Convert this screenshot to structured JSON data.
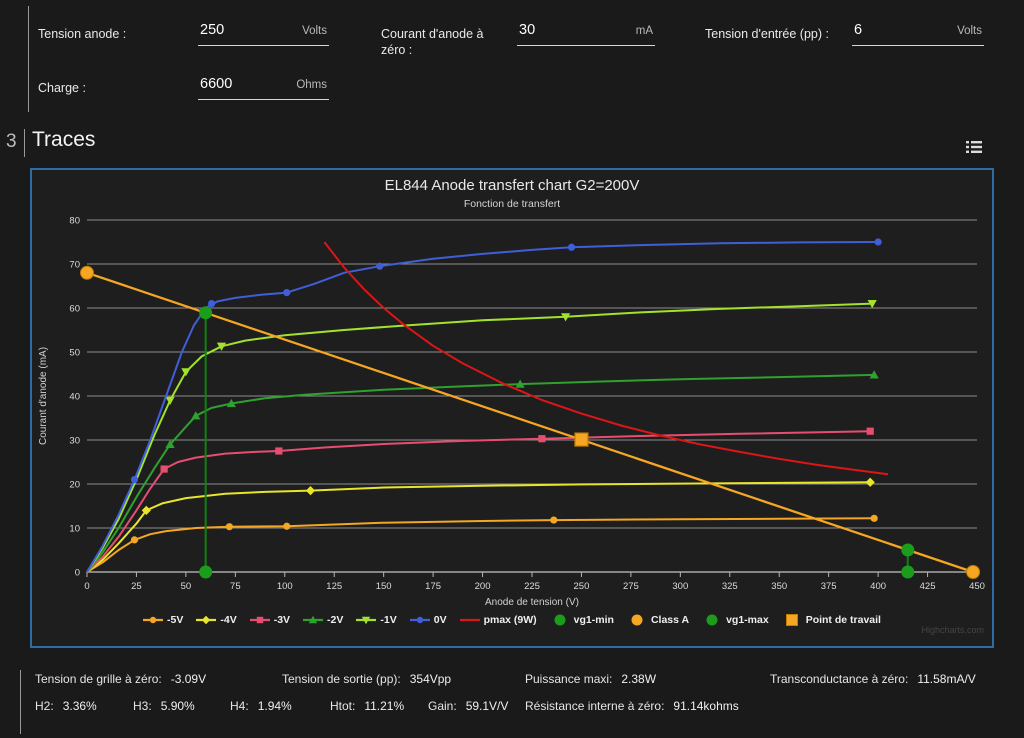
{
  "form": {
    "fields": [
      {
        "label": "Tension anode :",
        "value": "250",
        "unit": "Volts"
      },
      {
        "label": "Courant d'anode à zéro :",
        "value": "30",
        "unit": "mA"
      },
      {
        "label": "Tension d'entrée (pp) :",
        "value": "6",
        "unit": "Volts"
      },
      {
        "label": "Charge :",
        "value": "6600",
        "unit": "Ohms"
      }
    ]
  },
  "section": {
    "number": "3",
    "title": "Traces"
  },
  "chart_data": {
    "type": "line",
    "title": "EL844 Anode transfert chart G2=200V",
    "subtitle": "Fonction de transfert",
    "xlabel": "Anode de tension (V)",
    "ylabel": "Courant d'anode (mA)",
    "xlim": [
      0,
      450
    ],
    "ylim": [
      0,
      80
    ],
    "x_ticks": [
      0,
      25,
      50,
      75,
      100,
      125,
      150,
      175,
      200,
      225,
      250,
      275,
      300,
      325,
      350,
      375,
      400,
      425,
      450
    ],
    "y_ticks": [
      0,
      10,
      20,
      30,
      40,
      50,
      60,
      70,
      80
    ],
    "grid": "horizontal",
    "legend_position": "bottom",
    "watermark": "Highcharts.com",
    "accent_border_color": "#2e6da4",
    "series": [
      {
        "name": "-5V",
        "color": "#f5a623",
        "marker": "circle",
        "points": [
          [
            0,
            0
          ],
          [
            8,
            2.2
          ],
          [
            16,
            5
          ],
          [
            24,
            7.3
          ],
          [
            32,
            8.6
          ],
          [
            40,
            9.3
          ],
          [
            55,
            10
          ],
          [
            72,
            10.3
          ],
          [
            101,
            10.4
          ],
          [
            150,
            11.2
          ],
          [
            200,
            11.6
          ],
          [
            236,
            11.8
          ],
          [
            300,
            12
          ],
          [
            350,
            12.1
          ],
          [
            398,
            12.2
          ]
        ],
        "markers": [
          [
            24,
            7.3
          ],
          [
            72,
            10.3
          ],
          [
            101,
            10.4
          ],
          [
            236,
            11.8
          ],
          [
            398,
            12.2
          ]
        ]
      },
      {
        "name": "-4V",
        "color": "#e9e42c",
        "marker": "diamond",
        "points": [
          [
            0,
            0
          ],
          [
            8,
            2.8
          ],
          [
            16,
            6.5
          ],
          [
            25,
            11
          ],
          [
            30,
            14
          ],
          [
            38,
            15.6
          ],
          [
            50,
            16.8
          ],
          [
            70,
            17.8
          ],
          [
            90,
            18.2
          ],
          [
            113,
            18.5
          ],
          [
            150,
            19.2
          ],
          [
            200,
            19.6
          ],
          [
            250,
            19.9
          ],
          [
            300,
            20.1
          ],
          [
            396,
            20.4
          ]
        ],
        "markers": [
          [
            30,
            14
          ],
          [
            113,
            18.5
          ],
          [
            396,
            20.4
          ]
        ]
      },
      {
        "name": "-3V",
        "color": "#e64e70",
        "marker": "square",
        "points": [
          [
            0,
            0
          ],
          [
            8,
            3.5
          ],
          [
            16,
            8
          ],
          [
            25,
            14
          ],
          [
            32,
            19
          ],
          [
            39,
            23.4
          ],
          [
            46,
            25
          ],
          [
            55,
            26
          ],
          [
            70,
            26.9
          ],
          [
            85,
            27.3
          ],
          [
            97,
            27.5
          ],
          [
            120,
            28.3
          ],
          [
            150,
            29.1
          ],
          [
            190,
            29.8
          ],
          [
            230,
            30.3
          ],
          [
            280,
            30.9
          ],
          [
            330,
            31.4
          ],
          [
            396,
            32
          ]
        ],
        "markers": [
          [
            39,
            23.4
          ],
          [
            97,
            27.5
          ],
          [
            230,
            30.3
          ],
          [
            396,
            32
          ]
        ]
      },
      {
        "name": "-2V",
        "color": "#2fa12f",
        "marker": "triangle",
        "points": [
          [
            0,
            0
          ],
          [
            8,
            4.5
          ],
          [
            16,
            10
          ],
          [
            25,
            17
          ],
          [
            34,
            23.5
          ],
          [
            42,
            29
          ],
          [
            50,
            33
          ],
          [
            55,
            35.5
          ],
          [
            63,
            37.3
          ],
          [
            73,
            38.3
          ],
          [
            90,
            39.5
          ],
          [
            110,
            40.3
          ],
          [
            150,
            41.4
          ],
          [
            185,
            42.1
          ],
          [
            219,
            42.7
          ],
          [
            260,
            43.3
          ],
          [
            300,
            43.8
          ],
          [
            350,
            44.3
          ],
          [
            398,
            44.8
          ]
        ],
        "markers": [
          [
            42,
            29
          ],
          [
            55,
            35.5
          ],
          [
            73,
            38.3
          ],
          [
            219,
            42.7
          ],
          [
            398,
            44.8
          ]
        ]
      },
      {
        "name": "-1V",
        "color": "#a3e22c",
        "marker": "triangle-down",
        "points": [
          [
            0,
            0
          ],
          [
            8,
            5.5
          ],
          [
            16,
            12
          ],
          [
            25,
            21
          ],
          [
            34,
            31
          ],
          [
            42,
            39
          ],
          [
            50,
            45.5
          ],
          [
            58,
            49
          ],
          [
            68,
            51.3
          ],
          [
            80,
            52.6
          ],
          [
            100,
            53.8
          ],
          [
            130,
            55
          ],
          [
            160,
            56
          ],
          [
            200,
            57.2
          ],
          [
            242,
            58
          ],
          [
            280,
            59
          ],
          [
            320,
            59.8
          ],
          [
            360,
            60.4
          ],
          [
            397,
            61
          ]
        ],
        "markers": [
          [
            42,
            39
          ],
          [
            50,
            45.5
          ],
          [
            68,
            51.3
          ],
          [
            242,
            58
          ],
          [
            397,
            61
          ]
        ]
      },
      {
        "name": "0V",
        "color": "#3f5ed8",
        "marker": "circle",
        "points": [
          [
            0,
            0
          ],
          [
            8,
            6
          ],
          [
            16,
            13
          ],
          [
            24,
            21
          ],
          [
            32,
            30
          ],
          [
            40,
            40
          ],
          [
            48,
            50
          ],
          [
            54,
            56
          ],
          [
            60,
            60
          ],
          [
            66,
            61.5
          ],
          [
            75,
            62.3
          ],
          [
            88,
            63
          ],
          [
            101,
            63.5
          ],
          [
            115,
            65.5
          ],
          [
            130,
            68
          ],
          [
            148,
            69.5
          ],
          [
            175,
            71.2
          ],
          [
            200,
            72.3
          ],
          [
            225,
            73.2
          ],
          [
            245,
            73.8
          ],
          [
            280,
            74.3
          ],
          [
            320,
            74.7
          ],
          [
            360,
            74.9
          ],
          [
            400,
            75
          ]
        ],
        "markers": [
          [
            24,
            21
          ],
          [
            63,
            61
          ],
          [
            101,
            63.5
          ],
          [
            148,
            69.5
          ],
          [
            245,
            73.8
          ],
          [
            400,
            75
          ]
        ]
      },
      {
        "name": "pmax (9W)",
        "color": "#dc1616",
        "marker": "none",
        "points": [
          [
            120,
            75
          ],
          [
            130,
            69.2
          ],
          [
            140,
            64.3
          ],
          [
            150,
            60
          ],
          [
            160,
            56.3
          ],
          [
            175,
            51.4
          ],
          [
            190,
            47.4
          ],
          [
            210,
            42.9
          ],
          [
            230,
            39.1
          ],
          [
            250,
            36
          ],
          [
            270,
            33.3
          ],
          [
            290,
            31
          ],
          [
            310,
            29
          ],
          [
            330,
            27.3
          ],
          [
            350,
            25.7
          ],
          [
            370,
            24.3
          ],
          [
            390,
            23.1
          ],
          [
            405,
            22.2
          ]
        ],
        "markers": []
      }
    ],
    "annotations": {
      "load_line": {
        "name": "load-line",
        "color": "#f5a623",
        "from": [
          0,
          68
        ],
        "to": [
          448,
          0
        ]
      },
      "class_a": {
        "name": "Class A",
        "color": "#f5a623",
        "points": [
          [
            0,
            68
          ],
          [
            448,
            0
          ]
        ]
      },
      "vg1_min": {
        "name": "vg1-min",
        "x": 60,
        "y_top": 58.9,
        "dot_color": "#1b9c1b",
        "line_color": "#128012"
      },
      "vg1_max": {
        "name": "vg1-max",
        "x": 415,
        "y_top": 5,
        "dot_color": "#1b9c1b",
        "line_color": "#128012"
      },
      "working_point": {
        "name": "Point de travail",
        "x": 250,
        "y": 30.1,
        "color": "#f5a623"
      }
    },
    "legend": [
      {
        "label": "-5V",
        "color": "#f5a623",
        "icon": "line-circle"
      },
      {
        "label": "-4V",
        "color": "#e9e42c",
        "icon": "line-diamond"
      },
      {
        "label": "-3V",
        "color": "#e64e70",
        "icon": "line-square"
      },
      {
        "label": "-2V",
        "color": "#2fa12f",
        "icon": "line-triangle"
      },
      {
        "label": "-1V",
        "color": "#a3e22c",
        "icon": "line-triangle-down"
      },
      {
        "label": "0V",
        "color": "#3f5ed8",
        "icon": "line-circle"
      },
      {
        "label": "pmax (9W)",
        "color": "#dc1616",
        "icon": "line"
      },
      {
        "label": "vg1-min",
        "color": "#1b9c1b",
        "icon": "dot"
      },
      {
        "label": "Class A",
        "color": "#f5a623",
        "icon": "dot"
      },
      {
        "label": "vg1-max",
        "color": "#1b9c1b",
        "icon": "dot"
      },
      {
        "label": "Point de travail",
        "color": "#f5a623",
        "icon": "square"
      }
    ]
  },
  "stats": {
    "row1": [
      {
        "label": "Tension de grille à zéro:",
        "value": "-3.09V"
      },
      {
        "label": "Tension de sortie (pp):",
        "value": "354Vpp"
      },
      {
        "label": "Puissance maxi:",
        "value": "2.38W"
      },
      {
        "label": "Transconductance à zéro:",
        "value": "11.58mA/V"
      }
    ],
    "row2": [
      {
        "label": "H2:",
        "value": "3.36%"
      },
      {
        "label": "H3:",
        "value": "5.90%"
      },
      {
        "label": "H4:",
        "value": "1.94%"
      },
      {
        "label": "Htot:",
        "value": "11.21%"
      },
      {
        "label": "Gain:",
        "value": "59.1V/V"
      },
      {
        "label": "Résistance interne à zéro:",
        "value": "91.14kohms"
      }
    ]
  }
}
